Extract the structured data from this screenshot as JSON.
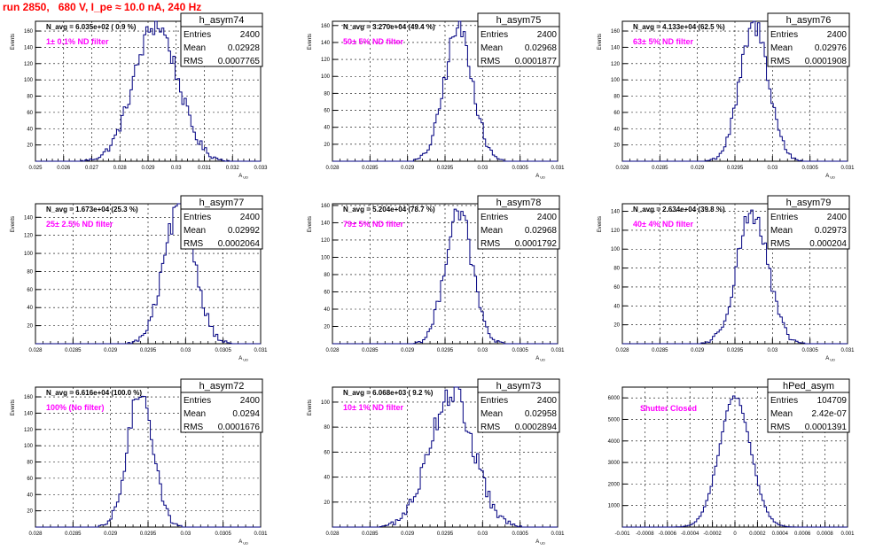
{
  "page": {
    "title": "run 2850,   680 V, I_pe ≈ 10.0 nA, 240 Hz"
  },
  "colors": {
    "histogram": "#000080",
    "annotation": "#ff00ff",
    "title": "#ff0000",
    "axis": "#000000",
    "grid": "#000000"
  },
  "chart_data": [
    {
      "type": "histogram",
      "name": "h_asym74",
      "stats": {
        "entries_label": "Entries",
        "entries": "2400",
        "mean_label": "Mean",
        "mean": "0.02928",
        "rms_label": "RMS",
        "rms": "0.0007765"
      },
      "navg": "N_avg = 6.035e+02 ( 0.9 %)",
      "filter_label": "1± 0.1% ND filter",
      "xlabel": "A_UD",
      "ylabel": "Events",
      "xlim": [
        0.025,
        0.033
      ],
      "ylim": [
        0,
        172
      ],
      "xticks": [
        "0.025",
        "0.026",
        "0.027",
        "0.028",
        "0.029",
        "0.03",
        "0.031",
        "0.032",
        "0.033"
      ],
      "yticks": [
        "20",
        "40",
        "60",
        "80",
        "100",
        "120",
        "140",
        "160"
      ],
      "grid": true,
      "peak_estimate": 168,
      "dist": {
        "mean": 0.02928,
        "rms": 0.0007765,
        "n": 2400,
        "bin": 8e-05
      }
    },
    {
      "type": "histogram",
      "name": "h_asym75",
      "stats": {
        "entries_label": "Entries",
        "entries": "2400",
        "mean_label": "Mean",
        "mean": "0.02968",
        "rms_label": "RMS",
        "rms": "0.0001877"
      },
      "navg": "N_avg = 3.270e+04 (49.4 %)",
      "filter_label": "50± 5% ND filter",
      "xlabel": "A_UD",
      "ylabel": "Events",
      "xlim": [
        0.028,
        0.031
      ],
      "ylim": [
        0,
        165
      ],
      "xticks": [
        "0.028",
        "0.0285",
        "0.029",
        "0.0295",
        "0.03",
        "0.0305",
        "0.031"
      ],
      "yticks": [
        "20",
        "40",
        "60",
        "80",
        "100",
        "120",
        "140",
        "160"
      ],
      "grid": true,
      "peak_estimate": 157,
      "dist": {
        "mean": 0.02968,
        "rms": 0.0001877,
        "n": 2400,
        "bin": 3e-05
      }
    },
    {
      "type": "histogram",
      "name": "h_asym76",
      "stats": {
        "entries_label": "Entries",
        "entries": "2400",
        "mean_label": "Mean",
        "mean": "0.02976",
        "rms_label": "RMS",
        "rms": "0.0001908"
      },
      "navg": "N_avg = 4.133e+04 (62.5 %)",
      "filter_label": "63± 5% ND filter",
      "xlabel": "A_UD",
      "ylabel": "Events",
      "xlim": [
        0.028,
        0.031
      ],
      "ylim": [
        0,
        172
      ],
      "xticks": [
        "0.028",
        "0.0285",
        "0.029",
        "0.0295",
        "0.03",
        "0.0305",
        "0.031"
      ],
      "yticks": [
        "20",
        "40",
        "60",
        "80",
        "100",
        "120",
        "140",
        "160"
      ],
      "grid": true,
      "peak_estimate": 167,
      "dist": {
        "mean": 0.02976,
        "rms": 0.0001908,
        "n": 2400,
        "bin": 3e-05
      }
    },
    {
      "type": "histogram",
      "name": "h_asym77",
      "stats": {
        "entries_label": "Entries",
        "entries": "2400",
        "mean_label": "Mean",
        "mean": "0.02992",
        "rms_label": "RMS",
        "rms": "0.0002064"
      },
      "navg": "N_avg = 1.673e+04 (25.3 %)",
      "filter_label": "25± 2.5% ND filter",
      "xlabel": "A_UD",
      "ylabel": "Events",
      "xlim": [
        0.028,
        0.031
      ],
      "ylim": [
        0,
        155
      ],
      "xticks": [
        "0.028",
        "0.0285",
        "0.029",
        "0.0295",
        "0.03",
        "0.0305",
        "0.031"
      ],
      "yticks": [
        "20",
        "40",
        "60",
        "80",
        "100",
        "120",
        "140"
      ],
      "grid": true,
      "peak_estimate": 150,
      "dist": {
        "mean": 0.02992,
        "rms": 0.0002064,
        "n": 2400,
        "bin": 3e-05
      }
    },
    {
      "type": "histogram",
      "name": "h_asym78",
      "stats": {
        "entries_label": "Entries",
        "entries": "2400",
        "mean_label": "Mean",
        "mean": "0.02968",
        "rms_label": "RMS",
        "rms": "0.0001792"
      },
      "navg": "N_avg = 5.204e+04 (78.7 %)",
      "filter_label": "79± 5% ND filter",
      "xlabel": "A_UD",
      "ylabel": "Events",
      "xlim": [
        0.028,
        0.031
      ],
      "ylim": [
        0,
        162
      ],
      "xticks": [
        "0.028",
        "0.0285",
        "0.029",
        "0.0295",
        "0.03",
        "0.0305",
        "0.031"
      ],
      "yticks": [
        "20",
        "40",
        "60",
        "80",
        "100",
        "120",
        "140",
        "160"
      ],
      "grid": true,
      "peak_estimate": 155,
      "dist": {
        "mean": 0.02968,
        "rms": 0.0001792,
        "n": 2400,
        "bin": 3e-05
      }
    },
    {
      "type": "histogram",
      "name": "h_asym79",
      "stats": {
        "entries_label": "Entries",
        "entries": "2400",
        "mean_label": "Mean",
        "mean": "0.02973",
        "rms_label": "RMS",
        "rms": "0.000204"
      },
      "navg": "N_avg = 2.634e+04 (39.8 %)",
      "filter_label": "40± 4% ND filter",
      "xlabel": "A_UD",
      "ylabel": "Events",
      "xlim": [
        0.028,
        0.031
      ],
      "ylim": [
        0,
        148
      ],
      "xticks": [
        "0.028",
        "0.0285",
        "0.029",
        "0.0295",
        "0.03",
        "0.0305",
        "0.031"
      ],
      "yticks": [
        "20",
        "40",
        "60",
        "80",
        "100",
        "120",
        "140"
      ],
      "grid": true,
      "peak_estimate": 140,
      "dist": {
        "mean": 0.02973,
        "rms": 0.000204,
        "n": 2400,
        "bin": 3e-05
      }
    },
    {
      "type": "histogram",
      "name": "h_asym72",
      "stats": {
        "entries_label": "Entries",
        "entries": "2400",
        "mean_label": "Mean",
        "mean": "0.0294",
        "rms_label": "RMS",
        "rms": "0.0001676"
      },
      "navg": "N_avg = 6.616e+04 (100.0 %)",
      "filter_label": "100% (No filter)",
      "xlabel": "A_UD",
      "ylabel": "Events",
      "xlim": [
        0.028,
        0.031
      ],
      "ylim": [
        0,
        172
      ],
      "xticks": [
        "0.028",
        "0.0285",
        "0.029",
        "0.0295",
        "0.03",
        "0.0305",
        "0.031"
      ],
      "yticks": [
        "20",
        "40",
        "60",
        "80",
        "100",
        "120",
        "140",
        "160"
      ],
      "grid": true,
      "peak_estimate": 170,
      "dist": {
        "mean": 0.0294,
        "rms": 0.0001676,
        "n": 2400,
        "bin": 3e-05
      }
    },
    {
      "type": "histogram",
      "name": "h_asym73",
      "stats": {
        "entries_label": "Entries",
        "entries": "2400",
        "mean_label": "Mean",
        "mean": "0.02958",
        "rms_label": "RMS",
        "rms": "0.0002894"
      },
      "navg": "N_avg = 6.068e+03 ( 9.2 %)",
      "filter_label": "10± 1% ND filter",
      "xlabel": "A_UD",
      "ylabel": "Events",
      "xlim": [
        0.028,
        0.031
      ],
      "ylim": [
        0,
        112
      ],
      "xticks": [
        "0.028",
        "0.0285",
        "0.029",
        "0.0295",
        "0.03",
        "0.0305",
        "0.031"
      ],
      "yticks": [
        "20",
        "40",
        "60",
        "80",
        "100"
      ],
      "grid": true,
      "peak_estimate": 108,
      "dist": {
        "mean": 0.02958,
        "rms": 0.0002894,
        "n": 2400,
        "bin": 3e-05
      }
    },
    {
      "type": "histogram",
      "name": "hPed_asym",
      "stats": {
        "entries_label": "Entries",
        "entries": "104709",
        "mean_label": "Mean",
        "mean": "2.42e-07",
        "rms_label": "RMS",
        "rms": "0.0001391"
      },
      "navg": "",
      "filter_label": "Shutter Closed",
      "xlabel": "",
      "ylabel": "",
      "xlim": [
        -0.001,
        0.001
      ],
      "ylim": [
        0,
        6500
      ],
      "xticks": [
        "-0.001",
        "-0.0008",
        "-0.0006",
        "-0.0004",
        "-0.0002",
        "0",
        "0.0002",
        "0.0004",
        "0.0006",
        "0.0008",
        "0.001"
      ],
      "yticks": [
        "1000",
        "2000",
        "3000",
        "4000",
        "5000",
        "6000"
      ],
      "grid": true,
      "peak_estimate": 6050,
      "dist": {
        "mean": 0.0,
        "rms": 0.0001391,
        "n": 104709,
        "bin": 2e-05
      }
    }
  ]
}
